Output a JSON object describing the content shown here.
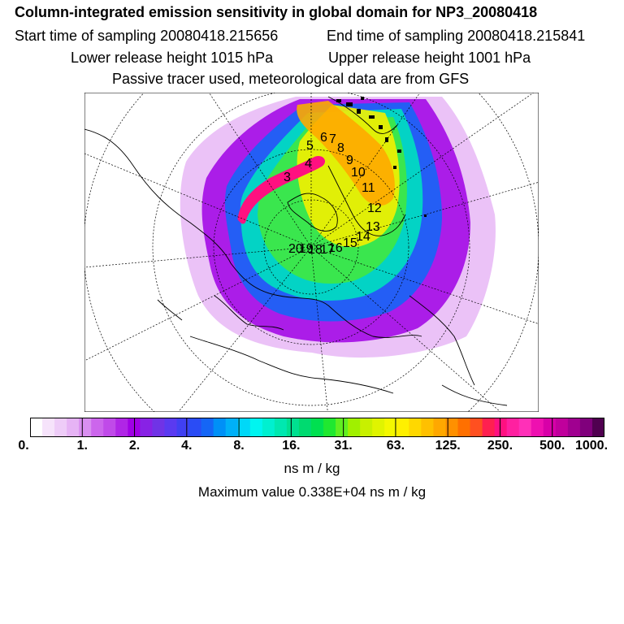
{
  "title": "Column-integrated emission sensitivity in global domain for NP3_20080418",
  "sampling_start": "Start time of sampling 20080418.215656",
  "sampling_end": "End time of sampling 20080418.215841",
  "lower_release": "Lower release height 1015 hPa",
  "upper_release": "Upper release height 1001 hPa",
  "tracer_note": "Passive tracer used, meteorological data are from GFS",
  "unit": "ns m / kg",
  "maximum": "Maximum value  0.338E+04 ns m / kg",
  "colorbar": {
    "ticks": [
      "0.",
      "1.",
      "2.",
      "4.",
      "8.",
      "16.",
      "31.",
      "63.",
      "125.",
      "250.",
      "500.",
      "1000."
    ],
    "colors": [
      "#ffffff",
      "#f6e3fb",
      "#eeccf8",
      "#e6b3f5",
      "#d98ff0",
      "#cc66ec",
      "#c04ae9",
      "#b026e6",
      "#a000e5",
      "#8822e5",
      "#7033e6",
      "#5a3af0",
      "#4040f2",
      "#2a4cf5",
      "#1566f6",
      "#0090f7",
      "#00b0f8",
      "#00d8f8",
      "#00f5f0",
      "#00f0d0",
      "#00e8b0",
      "#00e090",
      "#00da70",
      "#00e050",
      "#20e830",
      "#60ef20",
      "#a0f000",
      "#c8f000",
      "#e0f400",
      "#f4f800",
      "#fff000",
      "#ffd800",
      "#ffc000",
      "#ffa800",
      "#ff9000",
      "#ff7000",
      "#ff5020",
      "#ff2050",
      "#ff1080",
      "#ff20a0",
      "#ff30b8",
      "#ee10b0",
      "#d800a8",
      "#c0009c",
      "#a00090",
      "#80007c",
      "#500050"
    ]
  },
  "trajectory_labels": [
    "3",
    "4",
    "5",
    "6",
    "7",
    "8",
    "9",
    "10",
    "11",
    "12",
    "13",
    "14",
    "15",
    "16",
    "17",
    "18",
    "19",
    "20"
  ],
  "colors": {
    "background": "#ffffff",
    "text": "#000000"
  }
}
